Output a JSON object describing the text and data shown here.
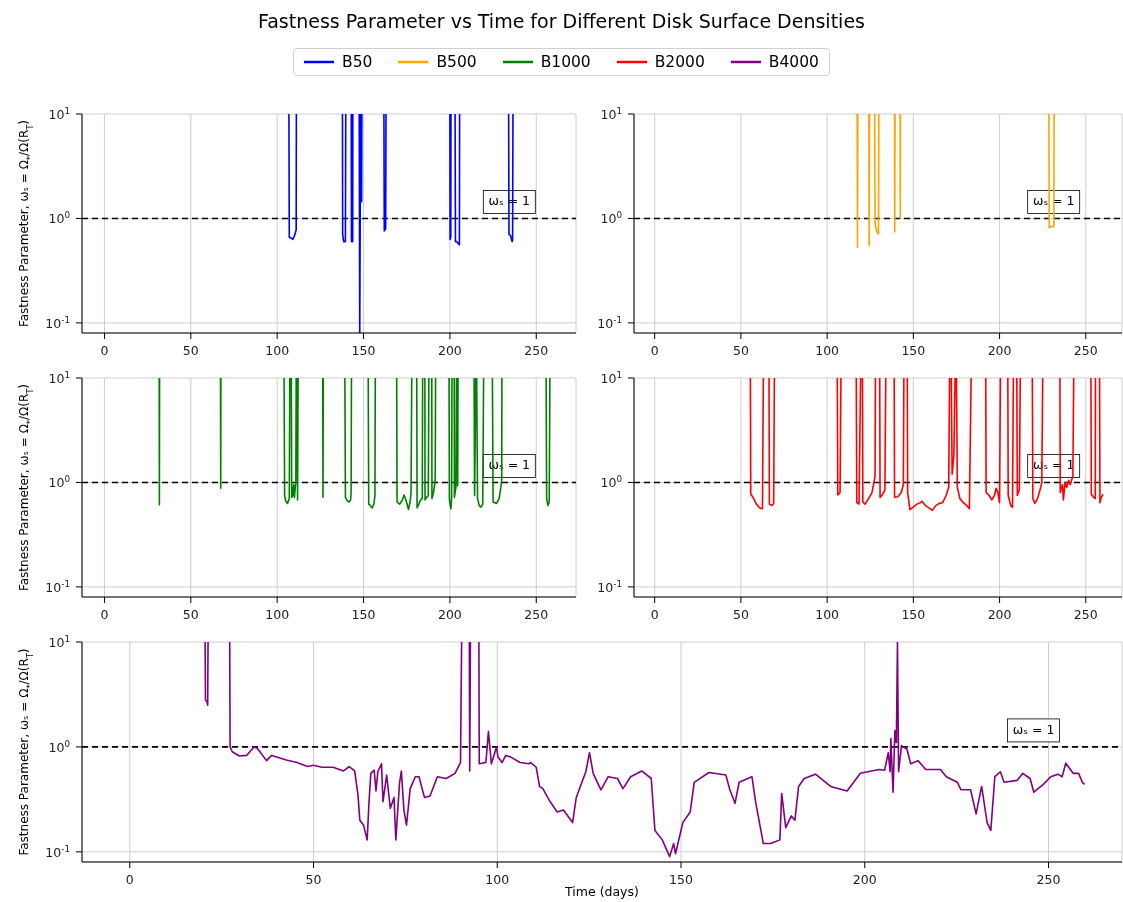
{
  "chart_data": [
    {
      "type": "line",
      "title": "Fastness Parameter vs Time for Different Disk Surface Densities",
      "ylabel": "Fastness Parameter, ωₛ = Ω$_{*}$/Ω(R$_{T}$)",
      "legend": "top",
      "grid": true,
      "log": "y",
      "xlim": [
        -13,
        273
      ],
      "ylim": [
        0.08,
        10
      ],
      "xticks": [
        0,
        50,
        100,
        150,
        200,
        250
      ],
      "yticks": [
        {
          "value": 0.1,
          "label": "10$^{-1}$"
        },
        {
          "value": 1,
          "label": "10$^{0}$"
        },
        {
          "value": 10,
          "label": "10$^{1}$"
        }
      ],
      "ref_lines": [
        {
          "axis": "y",
          "value": 1,
          "label": "ωₛ = 1",
          "color": "#000000",
          "line_style": "dashed"
        }
      ],
      "series": [
        {
          "name": "B50",
          "color": "#0000ff",
          "x": [
            106.8,
            107,
            108,
            109,
            110,
            111,
            111.1,
            124,
            137.8,
            137.9,
            138.5,
            139.5,
            139.7,
            141.3,
            142.9,
            143,
            143.7,
            143.8,
            145.6,
            147.5,
            147.8,
            148.3,
            148.55,
            148.8,
            148.9,
            149,
            155,
            161.8,
            162,
            162.8,
            163,
            181,
            200,
            200.1,
            200.5,
            200.6,
            201.8,
            203,
            203.2,
            204,
            205,
            205.5,
            205.6,
            220,
            234,
            234.2,
            235,
            236,
            236.3,
            236.5
          ],
          "values": [
            10,
            0.66,
            0.65,
            0.63,
            0.68,
            0.78,
            10,
            null,
            10,
            0.7,
            0.6,
            0.6,
            10,
            null,
            10,
            0.6,
            0.6,
            10,
            null,
            10,
            0.08,
            10,
            null,
            10,
            1.45,
            10,
            null,
            10,
            0.76,
            0.8,
            10,
            null,
            10,
            0.63,
            0.66,
            10,
            null,
            10,
            0.6,
            0.6,
            0.57,
            0.56,
            10,
            null,
            10,
            0.7,
            0.69,
            0.6,
            0.62,
            10
          ]
        }
      ]
    },
    {
      "type": "line",
      "legend": "top",
      "grid": true,
      "log": "y",
      "xlim": [
        -12,
        271
      ],
      "ylim": [
        0.08,
        10
      ],
      "xticks": [
        0,
        50,
        100,
        150,
        200,
        250
      ],
      "yticks": [
        {
          "value": 0.1,
          "label": "10$^{-1}$"
        },
        {
          "value": 1,
          "label": "10$^{0}$"
        },
        {
          "value": 10,
          "label": "10$^{1}$"
        }
      ],
      "ref_lines": [
        {
          "axis": "y",
          "value": 1,
          "label": "ωₛ = 1",
          "color": "#000000",
          "line_style": "dashed"
        }
      ],
      "series": [
        {
          "name": "B500",
          "color": "#ffa500",
          "x": [
            117.4,
            117.6,
            117.8,
            121,
            124.2,
            124.4,
            124.6,
            126,
            127.6,
            127.8,
            128.8,
            129.8,
            130,
            134.5,
            139.1,
            139.2,
            139.4,
            140.8,
            142.3,
            142.4,
            142.5,
            185,
            228.6,
            228.8,
            229.5,
            230.2,
            231,
            231.5,
            231.6
          ],
          "values": [
            10,
            0.53,
            10,
            null,
            10,
            0.55,
            10,
            null,
            10,
            0.9,
            0.75,
            0.71,
            10,
            null,
            10,
            0.74,
            10,
            null,
            10,
            1.02,
            10,
            null,
            10,
            0.81,
            0.84,
            0.83,
            0.84,
            0.84,
            10
          ]
        }
      ]
    },
    {
      "type": "line",
      "ylabel": "Fastness Parameter, ωₛ = Ω$_{*}$/Ω(R$_{T}$)",
      "legend": "top",
      "grid": true,
      "log": "y",
      "xlim": [
        -13,
        273
      ],
      "ylim": [
        0.08,
        10
      ],
      "xticks": [
        0,
        50,
        100,
        150,
        200,
        250
      ],
      "yticks": [
        {
          "value": 0.1,
          "label": "10$^{-1}$"
        },
        {
          "value": 1,
          "label": "10$^{0}$"
        },
        {
          "value": 10,
          "label": "10$^{1}$"
        }
      ],
      "ref_lines": [
        {
          "axis": "y",
          "value": 1,
          "label": "ωₛ = 1",
          "color": "#000000",
          "line_style": "dashed"
        }
      ],
      "series": [
        {
          "name": "B1000",
          "color": "#008000",
          "x": [
            31.7,
            31.8,
            31.9,
            50,
            67.2,
            67.3,
            67.4,
            85,
            104,
            104.3,
            105,
            106,
            107,
            107.3,
            107.7,
            108.2,
            108.4,
            109,
            109.5,
            110,
            110.8,
            111,
            111.3,
            111.6,
            111.8,
            112.1,
            119,
            126.4,
            126.5,
            126.7,
            133,
            139.2,
            139.5,
            140.5,
            141.5,
            142.5,
            142.8,
            143,
            148,
            152.7,
            153,
            154,
            155,
            156,
            156.6,
            156.8,
            163,
            169.2,
            169.4,
            171,
            172.5,
            173.5,
            175,
            176,
            177,
            177.5,
            177.9,
            179.3,
            180.8,
            181,
            182,
            183,
            184,
            184.2,
            184.8,
            185.5,
            185.6,
            186.5,
            187.5,
            187.8,
            188.6,
            189.5,
            189.6,
            190.5,
            191.5,
            191.7,
            195,
            199.5,
            199.7,
            200.6,
            201,
            201.2,
            201.8,
            202.5,
            202.6,
            203.5,
            203.8,
            204,
            204.3,
            204.5,
            204.7,
            209,
            214,
            214.3,
            215,
            215.2,
            215.5,
            216,
            217,
            218,
            219,
            219.5,
            222,
            224.6,
            225,
            227,
            228.5,
            229.5,
            230,
            230.1,
            243,
            255.7,
            256,
            256.8,
            257.5,
            257.9
          ],
          "values": [
            10,
            0.61,
            10,
            null,
            10,
            0.88,
            10,
            null,
            10,
            0.75,
            0.66,
            0.63,
            0.7,
            10,
            null,
            10,
            0.72,
            0.75,
            0.95,
            0.72,
            1.05,
            10,
            null,
            10,
            0.68,
            10,
            null,
            10,
            0.72,
            10,
            null,
            10,
            0.72,
            0.67,
            0.65,
            0.68,
            0.8,
            10,
            null,
            10,
            0.62,
            0.6,
            0.57,
            0.62,
            0.75,
            10,
            null,
            10,
            0.65,
            0.62,
            0.68,
            0.76,
            0.64,
            0.55,
            0.66,
            0.8,
            10,
            null,
            10,
            0.57,
            0.62,
            0.68,
            0.7,
            10,
            null,
            10,
            0.68,
            0.72,
            0.75,
            10,
            null,
            10,
            0.7,
            0.8,
            1.05,
            10,
            null,
            10,
            0.68,
            0.56,
            0.72,
            10,
            null,
            10,
            0.72,
            0.9,
            10,
            null,
            10,
            0.93,
            10,
            null,
            10,
            0.75,
            10,
            null,
            10,
            0.7,
            0.6,
            0.58,
            0.62,
            10,
            null,
            10,
            0.65,
            0.63,
            0.7,
            0.9,
            1.05,
            10,
            null,
            10,
            0.7,
            0.6,
            0.65,
            10
          ]
        }
      ]
    },
    {
      "type": "line",
      "legend": "top",
      "grid": true,
      "log": "y",
      "xlim": [
        -12,
        271
      ],
      "ylim": [
        0.08,
        10
      ],
      "xticks": [
        0,
        50,
        100,
        150,
        200,
        250
      ],
      "yticks": [
        {
          "value": 0.1,
          "label": "10$^{-1}$"
        },
        {
          "value": 1,
          "label": "10$^{0}$"
        },
        {
          "value": 10,
          "label": "10$^{1}$"
        }
      ],
      "ref_lines": [
        {
          "axis": "y",
          "value": 1,
          "label": "ωₛ = 1",
          "color": "#000000",
          "line_style": "dashed"
        }
      ],
      "series": [
        {
          "name": "B2000",
          "color": "#ff0000",
          "x": [
            55.5,
            55.7,
            57,
            59,
            61,
            62.5,
            63,
            64.6,
            66.3,
            66.5,
            68,
            69,
            69.4,
            88,
            105.9,
            106.2,
            107.5,
            108,
            112,
            116.9,
            117.2,
            118.5,
            119.4,
            120,
            120.5,
            120.7,
            122,
            124,
            126,
            127.8,
            128,
            129.2,
            130.5,
            130.7,
            132,
            133.5,
            134,
            136.5,
            138.9,
            139.1,
            141,
            143,
            144.2,
            144.5,
            145.7,
            146.5,
            146.7,
            148,
            150,
            152,
            154,
            155,
            157,
            159,
            161,
            163,
            165,
            167,
            169,
            170.5,
            171,
            171.5,
            172,
            172.5,
            173.5,
            174.2,
            174.6,
            175,
            175.5,
            177,
            179,
            181,
            182.5,
            183.5,
            188,
            192,
            192.2,
            194,
            195.5,
            197,
            198,
            199,
            200,
            200.5,
            202.5,
            204.8,
            205,
            206.5,
            207.5,
            208,
            209,
            210,
            210.3,
            211.5,
            212,
            215.5,
            219,
            219.3,
            220.5,
            222,
            223.5,
            224.5,
            225,
            230,
            235,
            235.2,
            236.5,
            237,
            238,
            239,
            240,
            241,
            242.5,
            243,
            248,
            253,
            253.2,
            254.5,
            255.5,
            255.6,
            256.8,
            258,
            258.2,
            259,
            260
          ],
          "values": [
            10,
            0.77,
            0.72,
            0.62,
            0.57,
            0.56,
            10,
            null,
            10,
            0.62,
            0.6,
            0.63,
            10,
            null,
            10,
            0.76,
            0.8,
            10,
            null,
            10,
            0.64,
            0.62,
            10,
            null,
            10,
            0.65,
            0.62,
            0.7,
            0.8,
            1.15,
            10,
            null,
            10,
            0.72,
            0.76,
            0.85,
            10,
            null,
            10,
            0.72,
            0.73,
            0.8,
            0.95,
            10,
            null,
            10,
            0.8,
            0.55,
            0.58,
            0.62,
            0.64,
            0.66,
            0.6,
            0.57,
            0.54,
            0.6,
            0.63,
            0.64,
            0.75,
            0.9,
            10,
            null,
            10,
            1.2,
            1.8,
            10,
            null,
            10,
            0.9,
            0.7,
            0.64,
            0.6,
            0.56,
            10,
            null,
            10,
            0.8,
            0.75,
            0.68,
            0.75,
            0.88,
            0.8,
            0.64,
            10,
            null,
            10,
            0.75,
            0.6,
            0.58,
            10,
            null,
            10,
            0.75,
            0.85,
            10,
            null,
            10,
            0.7,
            0.63,
            0.7,
            0.85,
            1.0,
            10,
            null,
            10,
            0.8,
            0.95,
            0.68,
            1.0,
            0.9,
            1.05,
            0.95,
            1.15,
            10,
            null,
            10,
            0.77,
            0.72,
            0.7,
            10,
            null,
            10,
            0.64,
            0.72,
            0.77
          ]
        }
      ]
    },
    {
      "type": "line",
      "xlabel": "Time (days)",
      "ylabel": "Fastness Parameter, ωₛ = Ω$_{*}$/Ω(R$_{T}$)",
      "legend": "top",
      "grid": true,
      "log": "y",
      "xlim": [
        -13,
        270
      ],
      "ylim": [
        0.08,
        10
      ],
      "xticks": [
        0,
        50,
        100,
        150,
        200,
        250
      ],
      "yticks": [
        {
          "value": 0.1,
          "label": "10$^{-1}$"
        },
        {
          "value": 1,
          "label": "10$^{0}$"
        },
        {
          "value": 10,
          "label": "10$^{1}$"
        }
      ],
      "ref_lines": [
        {
          "axis": "y",
          "value": 1,
          "label": "ωₛ = 1",
          "color": "#000000",
          "line_style": "dashed"
        }
      ],
      "series": [
        {
          "name": "B4000",
          "color": "#800080",
          "x": [
            20.5,
            20.6,
            21,
            21.2,
            21.3,
            24,
            27.2,
            27.3,
            27.9,
            29.8,
            31.8,
            33.8,
            34.7,
            37.2,
            38.6,
            42.6,
            45.5,
            48.4,
            50,
            52.3,
            55.3,
            58.2,
            59.7,
            61.2,
            62.1,
            62.6,
            63.6,
            64.6,
            65.1,
            65.6,
            66.5,
            67,
            67.5,
            68.5,
            68.9,
            69.9,
            70.9,
            71.9,
            72.4,
            73.4,
            73.9,
            74.6,
            75.3,
            76.3,
            77.7,
            78.7,
            80.2,
            81.7,
            83.7,
            86.1,
            88.5,
            90,
            90.3,
            91.4,
            92.4,
            92.5,
            92.7,
            93.8,
            95,
            95.1,
            96.9,
            97.6,
            98.4,
            99.8,
            100.2,
            101.3,
            102.3,
            103.7,
            106.2,
            108.6,
            109.1,
            110.6,
            111.5,
            112.4,
            114.4,
            116.3,
            118,
            120.5,
            121.5,
            122.6,
            124.1,
            125.1,
            126.1,
            128.2,
            130.2,
            132.7,
            134.2,
            136.3,
            139.3,
            141.9,
            142.9,
            144.9,
            146.9,
            148,
            148.5,
            150.5,
            152.5,
            153.6,
            157.6,
            162.2,
            163.2,
            164.7,
            165.8,
            169.3,
            170.3,
            172.4,
            174.4,
            176.9,
            177.4,
            178.5,
            180,
            181,
            182,
            183.5,
            186.6,
            190.7,
            195.2,
            198.8,
            203.9,
            205.4,
            206.4,
            206.9,
            207.1,
            207.7,
            208.2,
            208.6,
            208.9,
            209.2,
            210,
            211.5,
            212.5,
            214.5,
            216.6,
            220.6,
            222.2,
            225.2,
            226.2,
            228.8,
            230.3,
            231.8,
            233.3,
            234.3,
            235.4,
            236.9,
            237.9,
            241.5,
            243,
            245,
            246,
            248.6,
            250.6,
            252.6,
            253.7,
            254.7,
            256.7,
            258.2,
            259.2,
            259.8
          ],
          "values": [
            10,
            2.8,
            2.7,
            2.5,
            10,
            null,
            10,
            1.0,
            0.9,
            0.82,
            0.83,
            1.0,
            0.97,
            0.74,
            0.83,
            0.75,
            0.71,
            0.65,
            0.67,
            0.64,
            0.64,
            0.59,
            0.65,
            0.59,
            0.35,
            0.2,
            0.18,
            0.13,
            0.3,
            0.56,
            0.6,
            0.38,
            0.58,
            0.69,
            0.3,
            0.54,
            0.26,
            0.33,
            0.13,
            0.45,
            0.59,
            0.25,
            0.18,
            0.4,
            0.52,
            0.52,
            0.33,
            0.34,
            0.52,
            0.5,
            0.56,
            0.71,
            10,
            null,
            10,
            0.59,
            10,
            null,
            10,
            0.69,
            0.71,
            1.4,
            0.69,
            1.0,
            0.8,
            0.71,
            0.83,
            0.8,
            0.71,
            0.69,
            0.71,
            0.64,
            0.42,
            0.4,
            0.3,
            0.24,
            0.25,
            0.19,
            0.33,
            0.42,
            0.58,
            0.88,
            0.56,
            0.39,
            0.52,
            0.5,
            0.4,
            0.52,
            0.59,
            0.5,
            0.16,
            0.13,
            0.09,
            0.12,
            0.096,
            0.19,
            0.24,
            0.46,
            0.57,
            0.54,
            0.4,
            0.29,
            0.46,
            0.52,
            0.3,
            0.12,
            0.12,
            0.13,
            0.36,
            0.17,
            0.22,
            0.2,
            0.42,
            0.5,
            0.55,
            0.42,
            0.38,
            0.56,
            0.61,
            0.6,
            0.88,
            0.58,
            1.2,
            0.37,
            1.43,
            1.1,
            10,
            0.58,
            1.03,
            0.95,
            0.69,
            0.74,
            0.61,
            0.61,
            0.52,
            0.46,
            0.39,
            0.39,
            0.23,
            0.42,
            0.19,
            0.16,
            0.52,
            0.58,
            0.46,
            0.48,
            0.56,
            0.5,
            0.37,
            0.44,
            0.52,
            0.55,
            0.52,
            0.7,
            0.56,
            0.56,
            0.46,
            0.44
          ]
        }
      ]
    }
  ]
}
